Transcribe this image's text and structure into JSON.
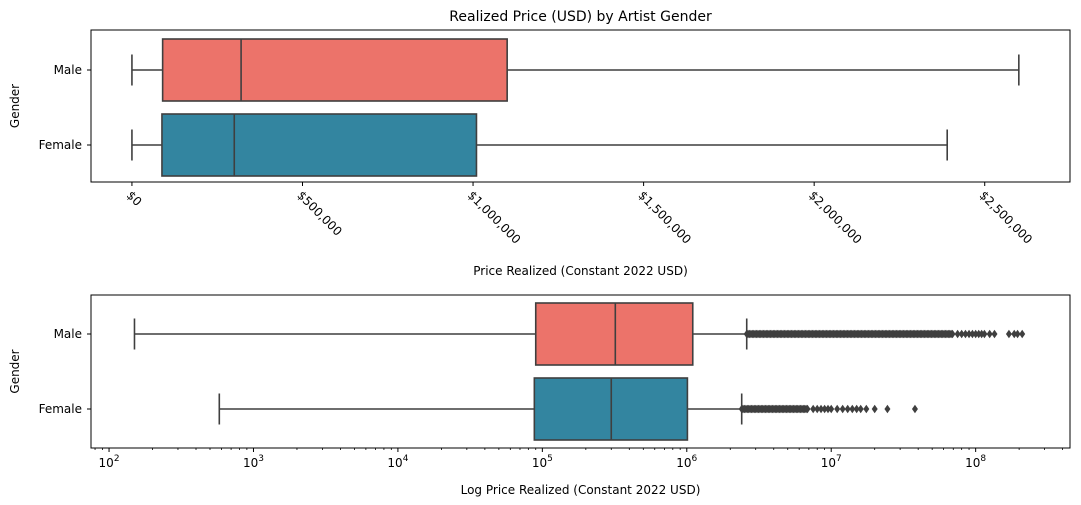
{
  "chart_data": [
    {
      "type": "boxplot",
      "title": "Realized Price (USD) by Artist Gender",
      "xlabel": "Price Realized (Constant 2022 USD)",
      "ylabel": "Gender",
      "xscale": "linear",
      "xlim": [
        -120000,
        2750000
      ],
      "xticks": [
        0,
        500000,
        1000000,
        1500000,
        2000000,
        2500000
      ],
      "xtick_labels": [
        "$0",
        "$500,000",
        "$1,000,000",
        "$1,500,000",
        "$2,000,000",
        "$2,500,000"
      ],
      "xtick_rotation": -45,
      "categories": [
        "Male",
        "Female"
      ],
      "colors": [
        "#ec736a",
        "#3385a0"
      ],
      "boxes": [
        {
          "label": "Male",
          "whisker_low": 0,
          "q1": 90000,
          "median": 320000,
          "q3": 1100000,
          "whisker_high": 2600000
        },
        {
          "label": "Female",
          "whisker_low": 0,
          "q1": 88000,
          "median": 300000,
          "q3": 1010000,
          "whisker_high": 2390000
        }
      ]
    },
    {
      "type": "boxplot",
      "title": "",
      "xlabel": "Log Price Realized (Constant 2022 USD)",
      "ylabel": "Gender",
      "xscale": "log",
      "xlim": [
        75,
        450000000
      ],
      "xticks": [
        100,
        1000,
        10000,
        100000,
        1000000,
        10000000,
        100000000
      ],
      "xtick_labels": [
        [
          "10",
          "2"
        ],
        [
          "10",
          "3"
        ],
        [
          "10",
          "4"
        ],
        [
          "10",
          "5"
        ],
        [
          "10",
          "6"
        ],
        [
          "10",
          "7"
        ],
        [
          "10",
          "8"
        ]
      ],
      "categories": [
        "Male",
        "Female"
      ],
      "colors": [
        "#ec736a",
        "#3385a0"
      ],
      "boxes": [
        {
          "label": "Male",
          "whisker_low": 150,
          "q1": 90000,
          "median": 320000,
          "q3": 1100000,
          "whisker_high": 2600000,
          "outlier_range": [
            2600000,
            70000000
          ],
          "outliers": [
            75000000,
            80000000,
            85000000,
            90000000,
            95000000,
            100000000,
            105000000,
            110000000,
            115000000,
            125000000,
            135000000,
            170000000,
            185000000,
            195000000,
            210000000
          ]
        },
        {
          "label": "Female",
          "whisker_low": 580,
          "q1": 88000,
          "median": 300000,
          "q3": 1010000,
          "whisker_high": 2400000,
          "outlier_range": [
            2400000,
            7000000
          ],
          "outliers": [
            7500000,
            8000000,
            8500000,
            9000000,
            9500000,
            10000000,
            11000000,
            12000000,
            13000000,
            14000000,
            15000000,
            16000000,
            17500000,
            20000000,
            24500000,
            38000000
          ]
        }
      ]
    }
  ]
}
